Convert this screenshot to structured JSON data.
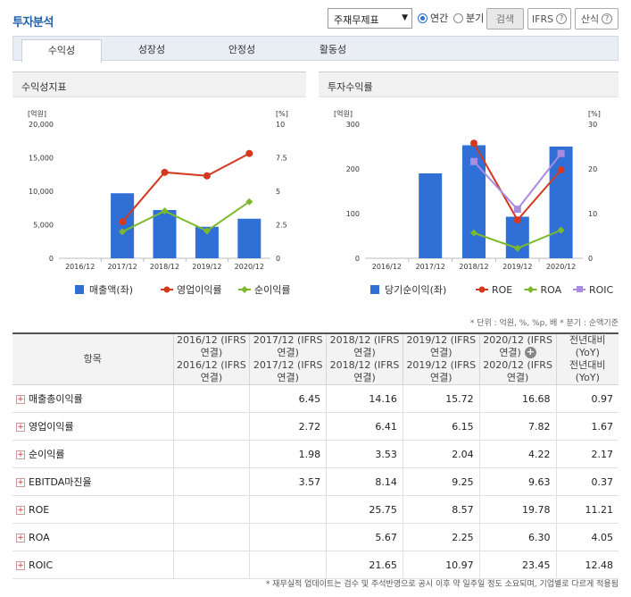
{
  "header": {
    "title": "투자분석",
    "select_value": "주재무제표",
    "radio_annual": "연간",
    "radio_quarter": "분기",
    "btn_search": "검색",
    "btn_ifrs": "IFRS",
    "btn_formula": "산식",
    "help_glyph": "?"
  },
  "tabs": [
    "수익성",
    "성장성",
    "안정성",
    "활동성"
  ],
  "panels": {
    "left_title": "수익성지표",
    "right_title": "투자수익률"
  },
  "colors": {
    "bar": "#2f6fd6",
    "red": "#d2391e",
    "green": "#7cba2b",
    "purple": "#a98be0"
  },
  "chart_data": [
    {
      "type": "bar",
      "title": "수익성지표",
      "y_unit_left": "[억원]",
      "y_unit_right": "[%]",
      "categories": [
        "2016/12",
        "2017/12",
        "2018/12",
        "2019/12",
        "2020/12"
      ],
      "ylim_left": [
        0,
        20000
      ],
      "ylim_right": [
        0,
        10
      ],
      "yticks_left": [
        "0",
        "5,000",
        "10,000",
        "15,000",
        "20,000"
      ],
      "yticks_right": [
        "0",
        "2.5",
        "5",
        "7.5",
        "10"
      ],
      "legend_position": "bottom",
      "series": [
        {
          "name": "매출액(좌)",
          "type": "bar",
          "axis": "left",
          "values": [
            null,
            9700,
            7200,
            4700,
            5900
          ]
        },
        {
          "name": "영업이익률",
          "type": "line",
          "axis": "right",
          "values": [
            null,
            2.72,
            6.41,
            6.15,
            7.82
          ]
        },
        {
          "name": "순이익률",
          "type": "line",
          "axis": "right",
          "values": [
            null,
            1.98,
            3.53,
            2.04,
            4.22
          ]
        }
      ]
    },
    {
      "type": "bar",
      "title": "투자수익률",
      "y_unit_left": "[억원]",
      "y_unit_right": "[%]",
      "categories": [
        "2016/12",
        "2017/12",
        "2018/12",
        "2019/12",
        "2020/12"
      ],
      "ylim_left": [
        0,
        300
      ],
      "ylim_right": [
        0,
        30
      ],
      "yticks_left": [
        "0",
        "100",
        "200",
        "300"
      ],
      "yticks_right": [
        "0",
        "10",
        "20",
        "30"
      ],
      "legend_position": "bottom",
      "series": [
        {
          "name": "당기순이익(좌)",
          "type": "bar",
          "axis": "left",
          "values": [
            null,
            190,
            253,
            93,
            250
          ]
        },
        {
          "name": "ROE",
          "type": "line",
          "axis": "right",
          "values": [
            null,
            null,
            25.75,
            8.57,
            19.78
          ]
        },
        {
          "name": "ROA",
          "type": "line",
          "axis": "right",
          "values": [
            null,
            null,
            5.67,
            2.25,
            6.3
          ]
        },
        {
          "name": "ROIC",
          "type": "line",
          "axis": "right",
          "values": [
            null,
            null,
            21.65,
            10.97,
            23.45
          ]
        }
      ]
    }
  ],
  "note_top": "* 단위 : 억원, %, %p, 배   * 분기 : 순액기준",
  "table": {
    "headers": [
      "항목",
      "2016/12\n(IFRS연결)",
      "2017/12\n(IFRS연결)",
      "2018/12\n(IFRS연결)",
      "2019/12\n(IFRS연결)",
      "2020/12\n(IFRS연결)",
      "전년대비\n(YoY)"
    ],
    "expand_glyph": "+",
    "rows": [
      {
        "label": "매출총이익률",
        "values": [
          "",
          "6.45",
          "14.16",
          "15.72",
          "16.68",
          "0.97"
        ]
      },
      {
        "label": "영업이익률",
        "values": [
          "",
          "2.72",
          "6.41",
          "6.15",
          "7.82",
          "1.67"
        ]
      },
      {
        "label": "순이익률",
        "values": [
          "",
          "1.98",
          "3.53",
          "2.04",
          "4.22",
          "2.17"
        ]
      },
      {
        "label": "EBITDA마진율",
        "values": [
          "",
          "3.57",
          "8.14",
          "9.25",
          "9.63",
          "0.37"
        ]
      },
      {
        "label": "ROE",
        "values": [
          "",
          "",
          "25.75",
          "8.57",
          "19.78",
          "11.21"
        ]
      },
      {
        "label": "ROA",
        "values": [
          "",
          "",
          "5.67",
          "2.25",
          "6.30",
          "4.05"
        ]
      },
      {
        "label": "ROIC",
        "values": [
          "",
          "",
          "21.65",
          "10.97",
          "23.45",
          "12.48"
        ]
      }
    ]
  },
  "note_bottom": "* 재무실적 업데이트는 검수 및 주석반영으로 공시 이후 약 일주일 정도 소요되며, 기업별로 다르게 적용됨"
}
